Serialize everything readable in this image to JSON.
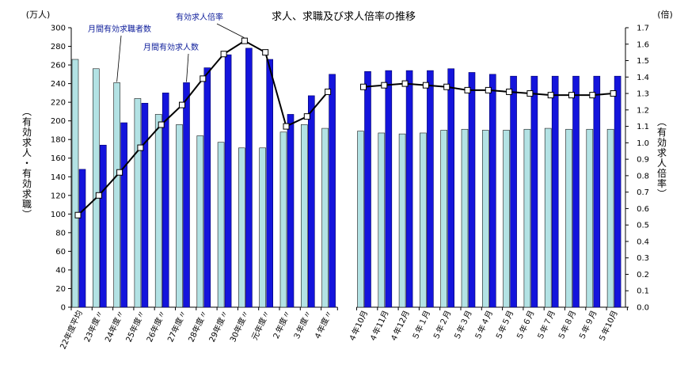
{
  "chart_data": {
    "type": "bar",
    "title": "求人、求職及び求人倍率の推移",
    "left_unit": "(万人)",
    "right_unit": "(倍)",
    "ylabel_left": "(有効求人・有効求職)",
    "ylabel_right": "(有効求人倍率)",
    "ylim_left": [
      0,
      300
    ],
    "ylim_right": [
      0,
      1.7
    ],
    "yticks_left": [
      0,
      20,
      40,
      60,
      80,
      100,
      120,
      140,
      160,
      180,
      200,
      220,
      240,
      260,
      280,
      300
    ],
    "yticks_right": [
      "0.0",
      "0.1",
      "0.2",
      "0.3",
      "0.4",
      "0.5",
      "0.6",
      "0.7",
      "0.8",
      "0.9",
      "1.0",
      "1.1",
      "1.2",
      "1.3",
      "1.4",
      "1.5",
      "1.6",
      "1.7"
    ],
    "categories": [
      "22年度平均",
      "23年度〃",
      "24年度〃",
      "25年度〃",
      "26年度〃",
      "27年度〃",
      "28年度〃",
      "29年度〃",
      "30年度〃",
      "元年度〃",
      "２年度〃",
      "３年度〃",
      "４年度〃",
      "４年10月",
      "４年11月",
      "４年12月",
      "５年１月",
      "５年２月",
      "５年３月",
      "５年４月",
      "５年５月",
      "５年６月",
      "５年７月",
      "５年８月",
      "５年９月",
      "５年10月"
    ],
    "gap_after_index": 12,
    "series": [
      {
        "name": "月間有効求職者数",
        "type": "bar",
        "axis": "left",
        "color": "#b3e2e4",
        "values": [
          266,
          256,
          241,
          224,
          207,
          196,
          184,
          177,
          171,
          171,
          188,
          196,
          192,
          189,
          187,
          186,
          187,
          190,
          191,
          190,
          190,
          191,
          192,
          191,
          191,
          191
        ]
      },
      {
        "name": "月間有効求人数",
        "type": "bar",
        "axis": "left",
        "color": "#1414dc",
        "values": [
          148,
          174,
          198,
          219,
          230,
          241,
          257,
          271,
          278,
          266,
          207,
          227,
          250,
          253,
          254,
          254,
          254,
          256,
          252,
          250,
          248,
          248,
          248,
          248,
          248,
          248
        ]
      },
      {
        "name": "有効求人倍率",
        "type": "line",
        "axis": "right",
        "color": "#000000",
        "values": [
          0.56,
          0.68,
          0.82,
          0.97,
          1.11,
          1.23,
          1.39,
          1.54,
          1.62,
          1.55,
          1.1,
          1.16,
          1.31,
          1.34,
          1.35,
          1.36,
          1.35,
          1.34,
          1.32,
          1.32,
          1.31,
          1.3,
          1.29,
          1.29,
          1.29,
          1.3
        ]
      }
    ],
    "annotations": [
      "月間有効求職者数",
      "月間有効求人数",
      "有効求人倍率"
    ],
    "grid": false,
    "legend": "none"
  }
}
